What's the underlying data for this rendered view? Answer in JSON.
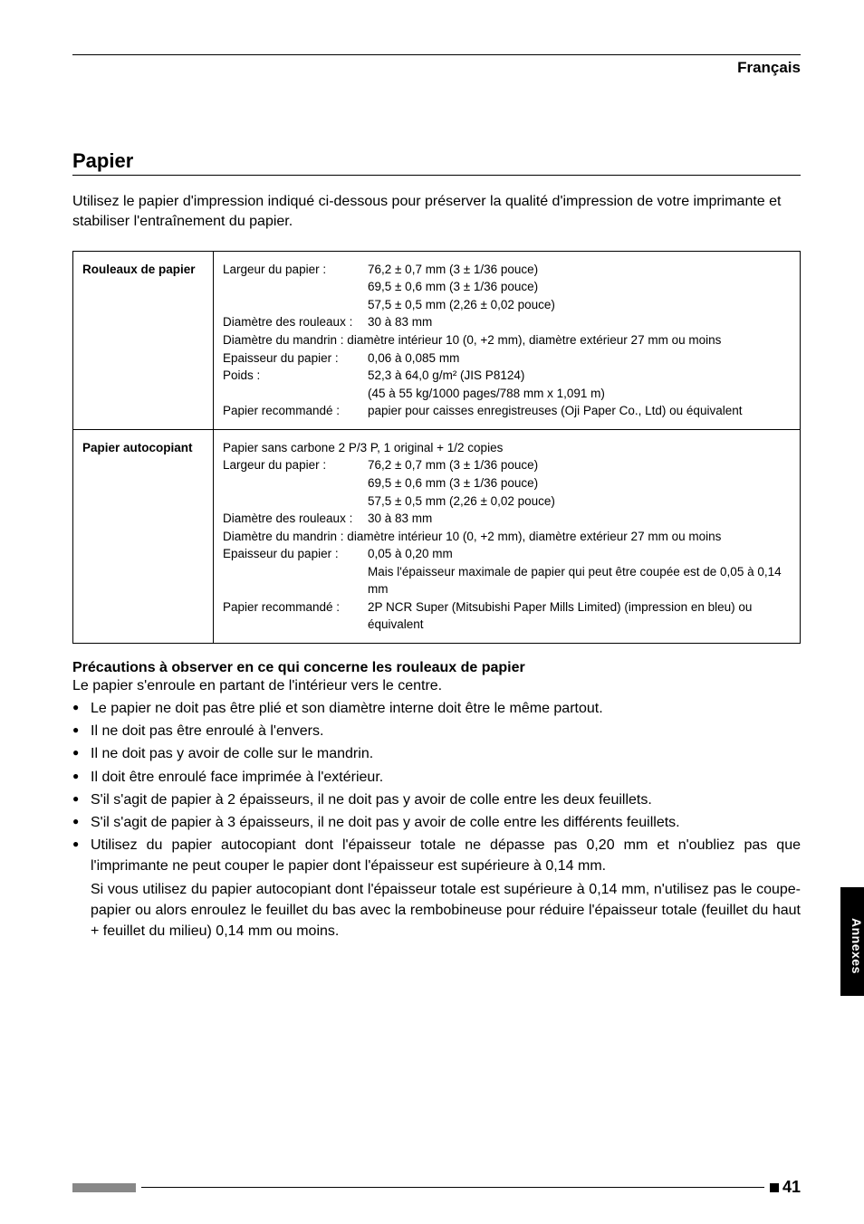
{
  "header": {
    "language": "Français"
  },
  "section": {
    "title": "Papier",
    "intro": "Utilisez le papier d'impression indiqué ci-dessous pour préserver la qualité d'impression de votre imprimante et stabiliser l'entraînement du papier."
  },
  "table": {
    "rows": [
      {
        "label": "Rouleaux de papier",
        "lines": [
          {
            "key": "Largeur du papier :",
            "val": "76,2 ± 0,7 mm (3 ± 1/36 pouce)"
          },
          {
            "key": "",
            "val": "69,5 ± 0,6 mm (3 ± 1/36 pouce)"
          },
          {
            "key": "",
            "val": "57,5 ± 0,5 mm (2,26 ± 0,02 pouce)"
          },
          {
            "key": "Diamètre des rouleaux :",
            "val": "30 à 83 mm"
          },
          {
            "full": "Diamètre du mandrin : diamètre intérieur 10 (0, +2 mm), diamètre extérieur 27 mm ou moins"
          },
          {
            "key": "Epaisseur du papier :",
            "val": "0,06 à 0,085 mm"
          },
          {
            "key": "Poids :",
            "val": "52,3 à 64,0 g/m² (JIS P8124)"
          },
          {
            "key": "",
            "val": "(45 à 55 kg/1000 pages/788 mm x 1,091 m)"
          },
          {
            "key": "Papier recommandé :",
            "val": "papier pour caisses enregistreuses (Oji Paper Co., Ltd) ou équivalent"
          }
        ]
      },
      {
        "label": "Papier autocopiant",
        "lines": [
          {
            "full": "Papier sans carbone 2 P/3 P, 1 original + 1/2 copies"
          },
          {
            "key": "Largeur du papier :",
            "val": "76,2 ± 0,7 mm (3 ± 1/36 pouce)"
          },
          {
            "key": "",
            "val": "69,5 ± 0,6 mm (3 ± 1/36 pouce)"
          },
          {
            "key": "",
            "val": "57,5 ± 0,5 mm (2,26 ± 0,02 pouce)"
          },
          {
            "key": "Diamètre des rouleaux :",
            "val": "30 à 83 mm"
          },
          {
            "full": "Diamètre du mandrin :  diamètre intérieur 10 (0, +2 mm), diamètre extérieur 27 mm ou moins"
          },
          {
            "key": "Epaisseur du papier :",
            "val": "0,05 à 0,20 mm"
          },
          {
            "key": "",
            "val": "Mais l'épaisseur maximale de papier qui peut être coupée est de 0,05 à 0,14 mm"
          },
          {
            "key": "Papier recommandé :",
            "val": "2P NCR Super (Mitsubishi Paper Mills Limited) (impression en bleu) ou équivalent"
          }
        ]
      }
    ]
  },
  "caution": {
    "title": "Précautions à observer en ce qui concerne les rouleaux de papier",
    "intro": "Le papier s'enroule en partant de l'intérieur vers le centre.",
    "bullets": [
      "Le papier ne doit pas être plié et son diamètre interne doit être le même partout.",
      "Il ne doit pas être enroulé à l'envers.",
      "Il ne doit pas y avoir de colle sur le mandrin.",
      "Il doit être enroulé face imprimée à l'extérieur.",
      "S'il s'agit de papier à 2 épaisseurs, il ne doit pas y avoir de colle entre les deux feuillets.",
      "S'il s'agit de papier à 3 épaisseurs, il ne doit pas y avoir de colle entre les différents feuillets.",
      "Utilisez du papier autocopiant dont l'épaisseur totale ne dépasse pas 0,20 mm et n'oubliez pas que l'imprimante ne peut couper le papier dont l'épaisseur est supérieure à 0,14 mm."
    ],
    "continuation": "Si vous utilisez du papier autocopiant dont l'épaisseur totale est supérieure à 0,14 mm, n'utilisez pas le coupe-papier ou alors enroulez le feuillet du bas avec la rembobineuse pour réduire l'épaisseur totale (feuillet du haut + feuillet du milieu) 0,14 mm ou moins."
  },
  "sidetab": "Annexes",
  "page_number": "41"
}
